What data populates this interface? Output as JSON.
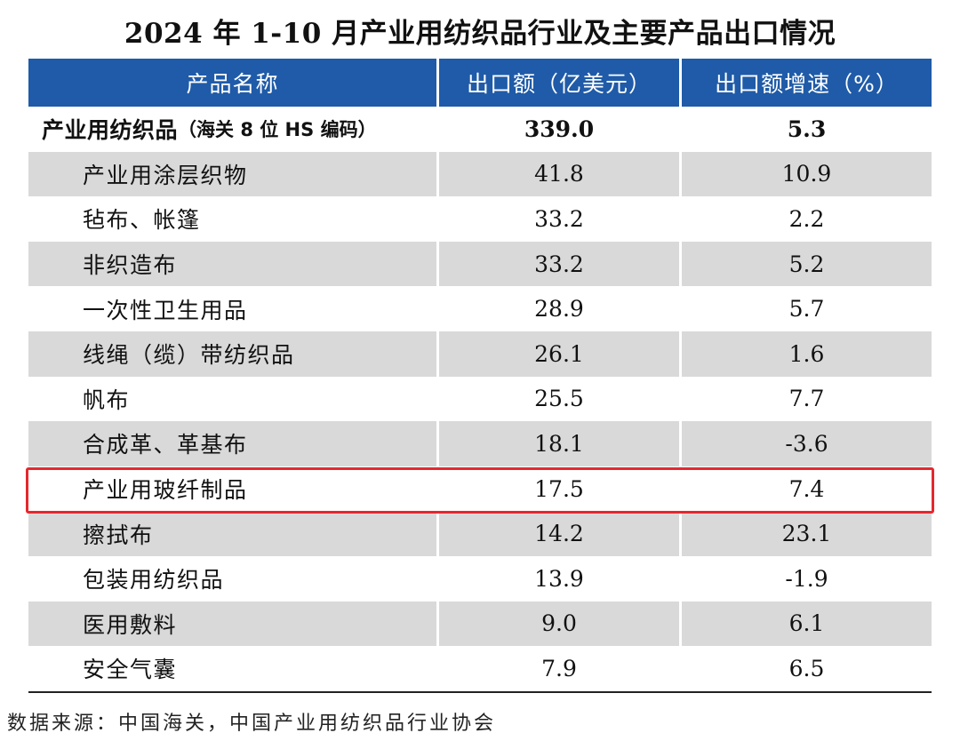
{
  "title": "2024 年 1-10 月产业用纺织品行业及主要产品出口情况",
  "table": {
    "headers": [
      "产品名称",
      "出口额（亿美元）",
      "出口额增速（%）"
    ],
    "total": {
      "name_main": "产业用纺织品",
      "name_paren": "（海关 8 位 HS 编码）",
      "export_value": "339.0",
      "growth": "5.3"
    },
    "rows": [
      {
        "name": "产业用涂层织物",
        "export_value": "41.8",
        "growth": "10.9"
      },
      {
        "name": "毡布、帐篷",
        "export_value": "33.2",
        "growth": "2.2"
      },
      {
        "name": "非织造布",
        "export_value": "33.2",
        "growth": "5.2"
      },
      {
        "name": "一次性卫生用品",
        "export_value": "28.9",
        "growth": "5.7"
      },
      {
        "name": "线绳（缆）带纺织品",
        "export_value": "26.1",
        "growth": "1.6"
      },
      {
        "name": "帆布",
        "export_value": "25.5",
        "growth": "7.7"
      },
      {
        "name": "合成革、革基布",
        "export_value": "18.1",
        "growth": "-3.6"
      },
      {
        "name": "产业用玻纤制品",
        "export_value": "17.5",
        "growth": "7.4"
      },
      {
        "name": "擦拭布",
        "export_value": "14.2",
        "growth": "23.1"
      },
      {
        "name": "包装用纺织品",
        "export_value": "13.9",
        "growth": "-1.9"
      },
      {
        "name": "医用敷料",
        "export_value": "9.0",
        "growth": "6.1"
      },
      {
        "name": "安全气囊",
        "export_value": "7.9",
        "growth": "6.5"
      }
    ]
  },
  "highlight_color": "#e5282e",
  "header_color": "#1f5ba8",
  "shade_color": "#d9d9d9",
  "source": "数据来源：中国海关，中国产业用纺织品行业协会"
}
